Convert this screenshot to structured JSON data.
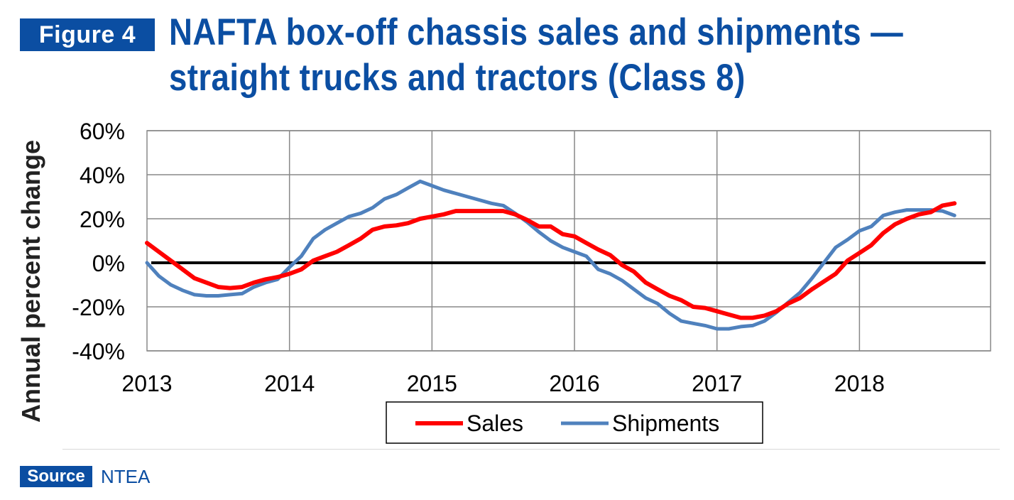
{
  "header": {
    "figure_label": "Figure 4",
    "title_line1": "NAFTA box-off chassis sales and shipments —",
    "title_line2": "straight trucks and tractors (Class 8)"
  },
  "footer": {
    "source_label": "Source",
    "source_text": "NTEA"
  },
  "colors": {
    "brand_blue": "#0b4ea2",
    "sales": "#ff0000",
    "shipments": "#4f81bd",
    "zero_line": "#000000",
    "grid": "#888888"
  },
  "chart_data": {
    "type": "line",
    "ylabel": "Annual percent change",
    "xlabel": "",
    "ylim": [
      -40,
      60
    ],
    "xlim": [
      2013,
      2018.92
    ],
    "yticks": [
      60,
      40,
      20,
      0,
      -20,
      -40
    ],
    "ytick_labels": [
      "60%",
      "40%",
      "20%",
      "0%",
      "-20%",
      "-40%"
    ],
    "xticks": [
      2013,
      2014,
      2015,
      2016,
      2017,
      2018
    ],
    "xtick_labels": [
      "2013",
      "2014",
      "2015",
      "2016",
      "2017",
      "2018"
    ],
    "grid": true,
    "legend_position": "bottom-center",
    "series": [
      {
        "name": "Sales",
        "color": "#ff0000",
        "x": [
          2013.0,
          2013.083,
          2013.167,
          2013.25,
          2013.333,
          2013.417,
          2013.5,
          2013.583,
          2013.667,
          2013.75,
          2013.833,
          2013.917,
          2014.0,
          2014.083,
          2014.167,
          2014.25,
          2014.333,
          2014.417,
          2014.5,
          2014.583,
          2014.667,
          2014.75,
          2014.833,
          2014.917,
          2015.0,
          2015.083,
          2015.167,
          2015.25,
          2015.333,
          2015.417,
          2015.5,
          2015.583,
          2015.667,
          2015.75,
          2015.833,
          2015.917,
          2016.0,
          2016.083,
          2016.167,
          2016.25,
          2016.333,
          2016.417,
          2016.5,
          2016.583,
          2016.667,
          2016.75,
          2016.833,
          2016.917,
          2017.0,
          2017.083,
          2017.167,
          2017.25,
          2017.333,
          2017.417,
          2017.5,
          2017.583,
          2017.667,
          2017.75,
          2017.833,
          2017.917,
          2018.0,
          2018.083,
          2018.167,
          2018.25,
          2018.333,
          2018.417,
          2018.5,
          2018.583,
          2018.667
        ],
        "values": [
          9,
          5,
          1,
          -3,
          -7,
          -9,
          -11,
          -11.5,
          -11,
          -9,
          -7.5,
          -6.5,
          -5,
          -3,
          1,
          3,
          5,
          8,
          11,
          15,
          16.5,
          17,
          18,
          20,
          21,
          22,
          23.5,
          23.5,
          23.5,
          23.5,
          23.5,
          22,
          19.5,
          16.5,
          16.5,
          13,
          12,
          9,
          6,
          3.5,
          -1,
          -4,
          -9,
          -12,
          -15,
          -17,
          -20,
          -20.5,
          -22,
          -23.5,
          -25,
          -25,
          -24,
          -22,
          -18.5,
          -16,
          -12,
          -8.5,
          -5,
          1,
          4.5,
          8,
          13.5,
          17.5,
          20,
          22,
          23,
          26,
          27
        ]
      },
      {
        "name": "Shipments",
        "color": "#4f81bd",
        "x": [
          2013.0,
          2013.083,
          2013.167,
          2013.25,
          2013.333,
          2013.417,
          2013.5,
          2013.583,
          2013.667,
          2013.75,
          2013.833,
          2013.917,
          2014.0,
          2014.083,
          2014.167,
          2014.25,
          2014.333,
          2014.417,
          2014.5,
          2014.583,
          2014.667,
          2014.75,
          2014.833,
          2014.917,
          2015.0,
          2015.083,
          2015.167,
          2015.25,
          2015.333,
          2015.417,
          2015.5,
          2015.583,
          2015.667,
          2015.75,
          2015.833,
          2015.917,
          2016.0,
          2016.083,
          2016.167,
          2016.25,
          2016.333,
          2016.417,
          2016.5,
          2016.583,
          2016.667,
          2016.75,
          2016.833,
          2016.917,
          2017.0,
          2017.083,
          2017.167,
          2017.25,
          2017.333,
          2017.417,
          2017.5,
          2017.583,
          2017.667,
          2017.75,
          2017.833,
          2017.917,
          2018.0,
          2018.083,
          2018.167,
          2018.25,
          2018.333,
          2018.417,
          2018.5,
          2018.583,
          2018.667
        ],
        "values": [
          0,
          -6,
          -10,
          -12.5,
          -14.5,
          -15,
          -15,
          -14.5,
          -14,
          -11,
          -9,
          -7.5,
          -2,
          3,
          11,
          15,
          18,
          21,
          22.5,
          25,
          29,
          31,
          34,
          37,
          35,
          33,
          31.5,
          30,
          28.5,
          27,
          26,
          22.5,
          18.5,
          14,
          10,
          7,
          5,
          3,
          -3,
          -5,
          -8,
          -12,
          -16,
          -18.5,
          -23,
          -26.5,
          -27.5,
          -28.5,
          -30,
          -30,
          -29,
          -28.5,
          -26.5,
          -22.5,
          -18,
          -13.5,
          -7,
          0,
          7,
          10.5,
          14.5,
          16.5,
          21.5,
          23,
          24,
          24,
          24,
          23.5,
          21.5
        ]
      }
    ]
  }
}
